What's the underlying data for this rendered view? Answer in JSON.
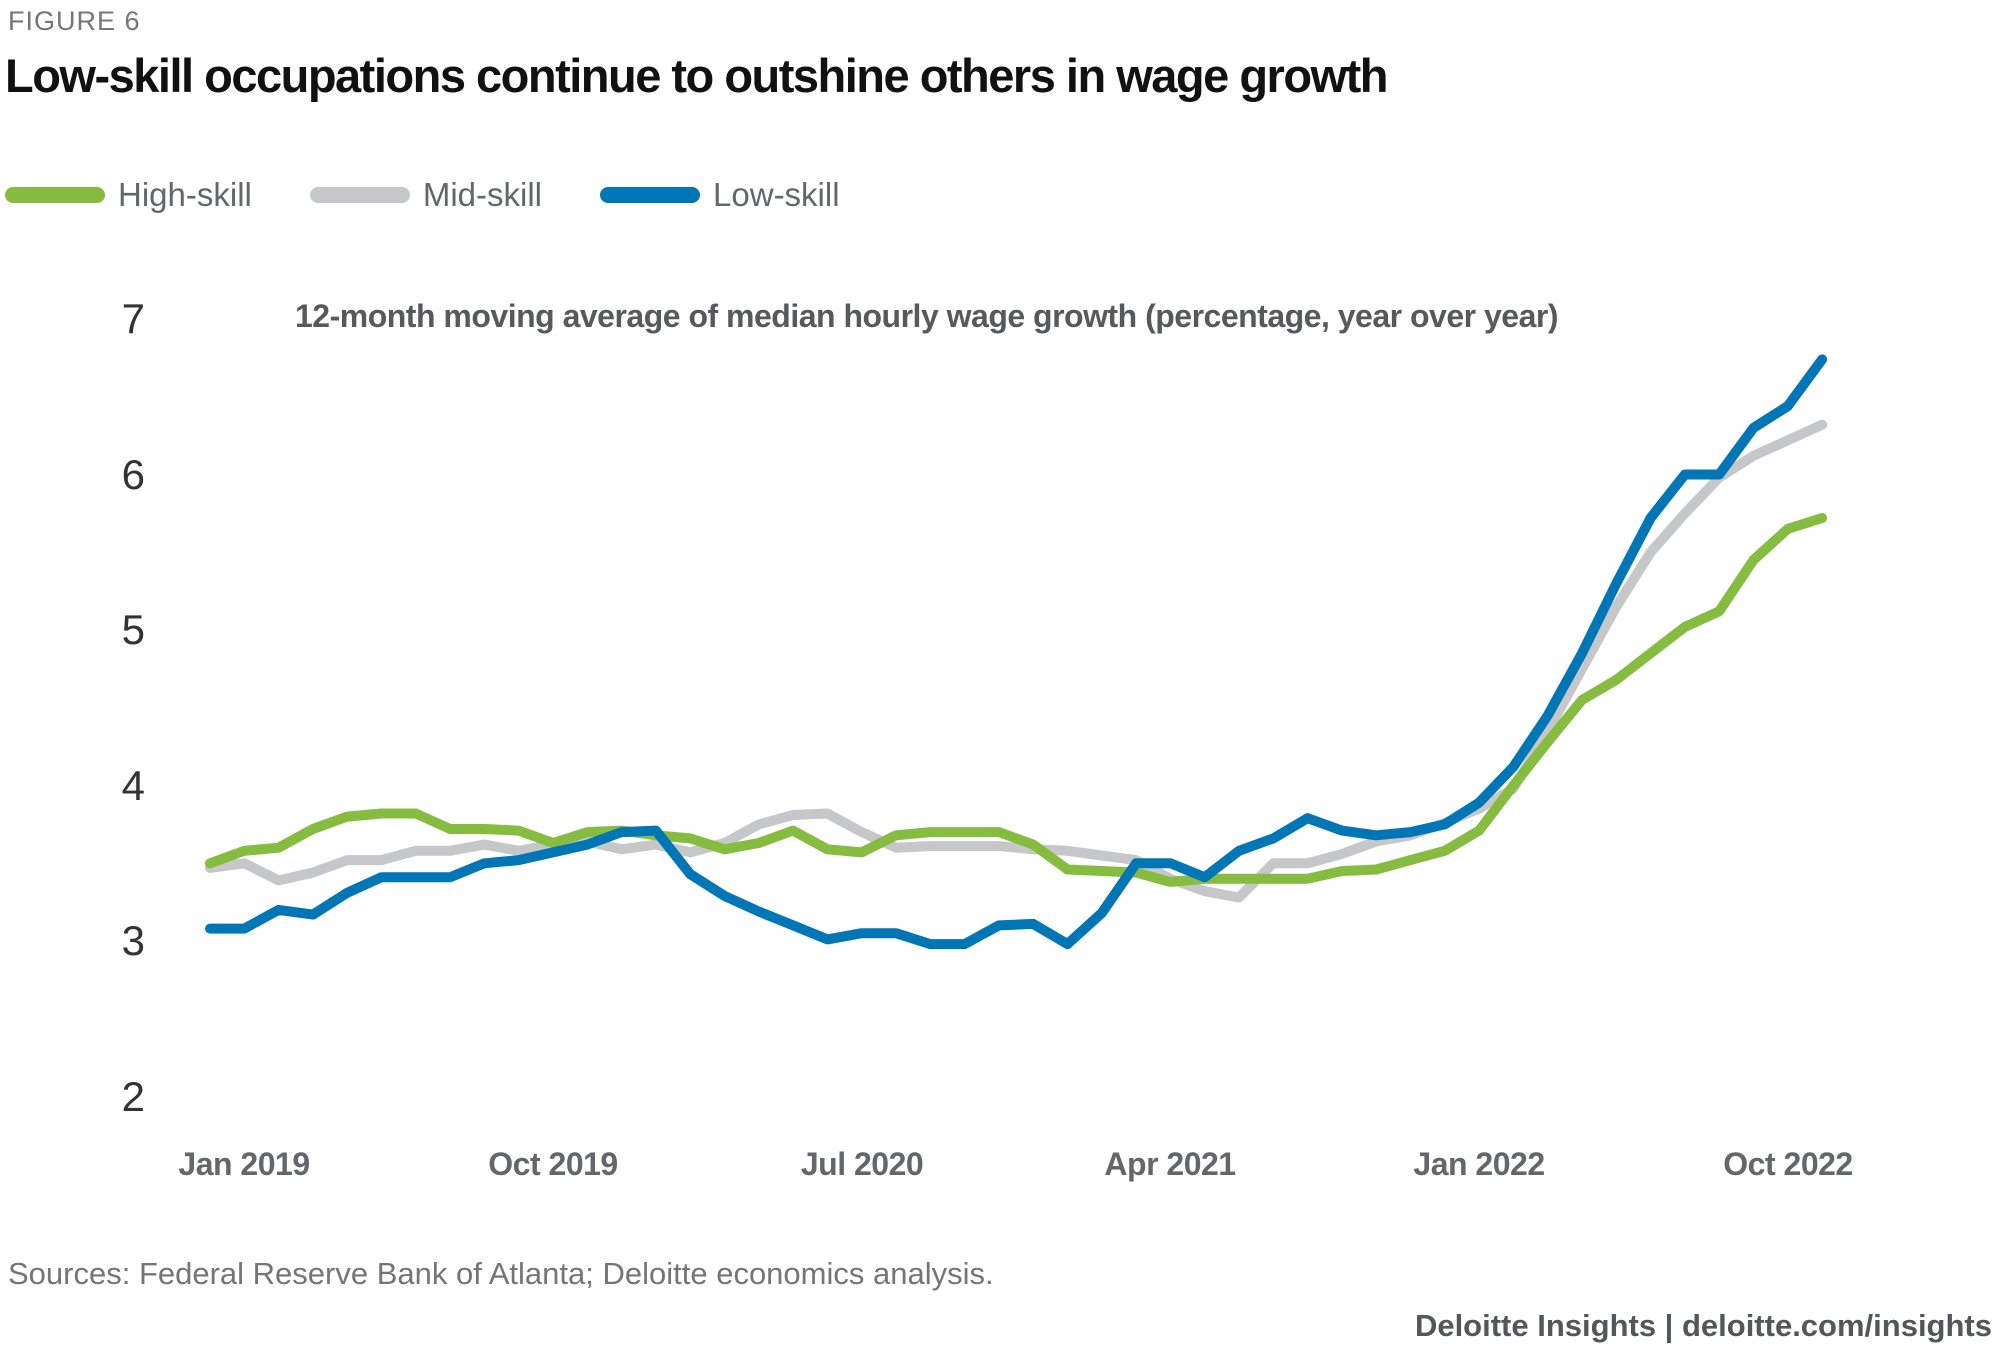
{
  "figure_label": "FIGURE 6",
  "title": "Low-skill occupations continue to outshine others in wage growth",
  "legend": [
    {
      "label": "High-skill",
      "color": "#86BC40"
    },
    {
      "label": "Mid-skill",
      "color": "#C6C7C9"
    },
    {
      "label": "Low-skill",
      "color": "#0076B6"
    }
  ],
  "chart_data": {
    "type": "line",
    "title": "Low-skill occupations continue to outshine others in wage growth",
    "subtitle": "12-month moving average of median hourly wage growth (percentage, year over year)",
    "xlabel": "",
    "ylabel": "",
    "grid": false,
    "legend_position": "top-left",
    "ylim": [
      2,
      7
    ],
    "y_ticks": [
      7,
      6,
      5,
      4,
      3,
      2
    ],
    "x_tick_labels": [
      "Jan 2019",
      "Oct 2019",
      "Jul 2020",
      "Apr 2021",
      "Jan 2022",
      "Oct 2022"
    ],
    "x_tick_indices": [
      1,
      10,
      19,
      28,
      37,
      46
    ],
    "x": [
      "Dec 2018",
      "Jan 2019",
      "Feb 2019",
      "Mar 2019",
      "Apr 2019",
      "May 2019",
      "Jun 2019",
      "Jul 2019",
      "Aug 2019",
      "Sep 2019",
      "Oct 2019",
      "Nov 2019",
      "Dec 2019",
      "Jan 2020",
      "Feb 2020",
      "Mar 2020",
      "Apr 2020",
      "May 2020",
      "Jun 2020",
      "Jul 2020",
      "Aug 2020",
      "Sep 2020",
      "Oct 2020",
      "Nov 2020",
      "Dec 2020",
      "Jan 2021",
      "Feb 2021",
      "Mar 2021",
      "Apr 2021",
      "May 2021",
      "Jun 2021",
      "Jul 2021",
      "Aug 2021",
      "Sep 2021",
      "Oct 2021",
      "Nov 2021",
      "Dec 2021",
      "Jan 2022",
      "Feb 2022",
      "Mar 2022",
      "Apr 2022",
      "May 2022",
      "Jun 2022",
      "Jul 2022",
      "Aug 2022",
      "Sep 2022",
      "Oct 2022",
      "Nov 2022"
    ],
    "series": [
      {
        "name": "Mid-skill",
        "color": "#C6C7C9",
        "values": [
          3.47,
          3.5,
          3.39,
          3.44,
          3.52,
          3.52,
          3.58,
          3.58,
          3.62,
          3.58,
          3.62,
          3.64,
          3.59,
          3.62,
          3.57,
          3.63,
          3.75,
          3.81,
          3.82,
          3.7,
          3.6,
          3.61,
          3.61,
          3.61,
          3.59,
          3.58,
          3.55,
          3.52,
          3.4,
          3.32,
          3.28,
          3.5,
          3.5,
          3.56,
          3.64,
          3.68,
          3.76,
          3.85,
          3.98,
          4.35,
          4.75,
          5.15,
          5.5,
          5.75,
          5.98,
          6.12,
          6.22,
          6.32
        ]
      },
      {
        "name": "High-skill",
        "color": "#86BC40",
        "values": [
          3.5,
          3.58,
          3.6,
          3.72,
          3.8,
          3.82,
          3.82,
          3.72,
          3.72,
          3.71,
          3.63,
          3.7,
          3.71,
          3.68,
          3.66,
          3.59,
          3.63,
          3.71,
          3.59,
          3.57,
          3.68,
          3.7,
          3.7,
          3.7,
          3.62,
          3.46,
          3.45,
          3.44,
          3.38,
          3.4,
          3.4,
          3.4,
          3.4,
          3.45,
          3.46,
          3.52,
          3.58,
          3.71,
          4.0,
          4.28,
          4.55,
          4.68,
          4.85,
          5.02,
          5.12,
          5.45,
          5.65,
          5.72
        ]
      },
      {
        "name": "Low-skill",
        "color": "#0076B6",
        "values": [
          3.08,
          3.08,
          3.2,
          3.17,
          3.31,
          3.41,
          3.41,
          3.41,
          3.5,
          3.52,
          3.57,
          3.62,
          3.7,
          3.71,
          3.43,
          3.29,
          3.19,
          3.1,
          3.01,
          3.05,
          3.05,
          2.98,
          2.98,
          3.1,
          3.11,
          2.98,
          3.18,
          3.5,
          3.5,
          3.41,
          3.58,
          3.66,
          3.79,
          3.71,
          3.68,
          3.7,
          3.75,
          3.89,
          4.12,
          4.45,
          4.85,
          5.3,
          5.72,
          6.0,
          6.0,
          6.3,
          6.44,
          6.74
        ]
      }
    ]
  },
  "footer": {
    "sources": "Sources: Federal Reserve Bank of Atlanta; Deloitte economics analysis.",
    "insights": "Deloitte Insights | deloitte.com/insights"
  }
}
